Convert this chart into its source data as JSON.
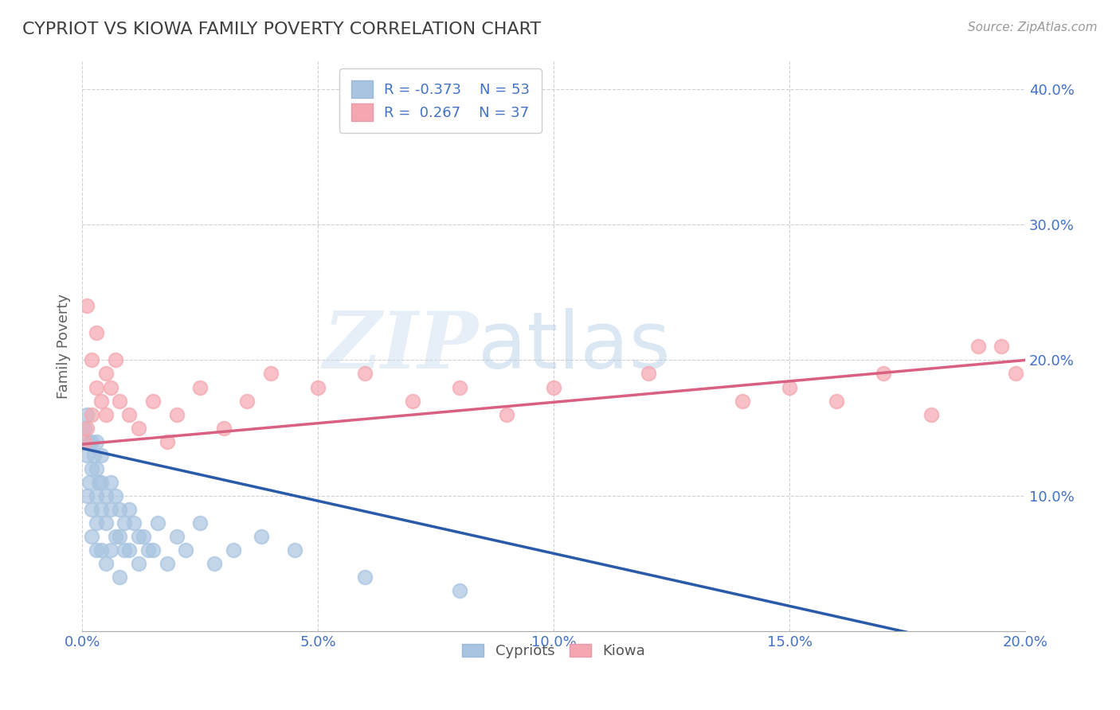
{
  "title": "CYPRIOT VS KIOWA FAMILY POVERTY CORRELATION CHART",
  "source": "Source: ZipAtlas.com",
  "ylabel": "Family Poverty",
  "watermark_zip": "ZIP",
  "watermark_atlas": "atlas",
  "xlim": [
    0.0,
    0.2
  ],
  "ylim": [
    0.0,
    0.42
  ],
  "xticks": [
    0.0,
    0.05,
    0.1,
    0.15,
    0.2
  ],
  "xtick_labels": [
    "0.0%",
    "5.0%",
    "10.0%",
    "15.0%",
    "20.0%"
  ],
  "yticks": [
    0.0,
    0.1,
    0.2,
    0.3,
    0.4
  ],
  "ytick_labels": [
    "",
    "10.0%",
    "20.0%",
    "30.0%",
    "40.0%"
  ],
  "cypriot_color": "#a8c4e0",
  "kiowa_color": "#f4a7b0",
  "cypriot_line_color": "#2a5aaa",
  "kiowa_line_color": "#d96080",
  "R_cypriot": -0.373,
  "N_cypriot": 53,
  "R_kiowa": 0.267,
  "N_kiowa": 37,
  "grid_color": "#cccccc",
  "background_color": "#ffffff",
  "title_color": "#404040",
  "axis_label_color": "#606060",
  "tick_color": "#4472c4",
  "cypriot_x": [
    0.0005,
    0.001,
    0.001,
    0.001,
    0.0015,
    0.0015,
    0.002,
    0.002,
    0.002,
    0.002,
    0.0025,
    0.003,
    0.003,
    0.003,
    0.003,
    0.003,
    0.0035,
    0.004,
    0.004,
    0.004,
    0.004,
    0.005,
    0.005,
    0.005,
    0.006,
    0.006,
    0.006,
    0.007,
    0.007,
    0.008,
    0.008,
    0.008,
    0.009,
    0.009,
    0.01,
    0.01,
    0.011,
    0.012,
    0.012,
    0.013,
    0.014,
    0.015,
    0.016,
    0.018,
    0.02,
    0.022,
    0.025,
    0.028,
    0.032,
    0.038,
    0.045,
    0.06,
    0.08
  ],
  "cypriot_y": [
    0.15,
    0.16,
    0.13,
    0.1,
    0.14,
    0.11,
    0.14,
    0.12,
    0.09,
    0.07,
    0.13,
    0.14,
    0.12,
    0.1,
    0.08,
    0.06,
    0.11,
    0.13,
    0.11,
    0.09,
    0.06,
    0.1,
    0.08,
    0.05,
    0.11,
    0.09,
    0.06,
    0.1,
    0.07,
    0.09,
    0.07,
    0.04,
    0.08,
    0.06,
    0.09,
    0.06,
    0.08,
    0.07,
    0.05,
    0.07,
    0.06,
    0.06,
    0.08,
    0.05,
    0.07,
    0.06,
    0.08,
    0.05,
    0.06,
    0.07,
    0.06,
    0.04,
    0.03
  ],
  "kiowa_x": [
    0.0005,
    0.001,
    0.001,
    0.002,
    0.002,
    0.003,
    0.003,
    0.004,
    0.005,
    0.005,
    0.006,
    0.007,
    0.008,
    0.01,
    0.012,
    0.015,
    0.018,
    0.02,
    0.025,
    0.03,
    0.035,
    0.04,
    0.05,
    0.06,
    0.07,
    0.08,
    0.09,
    0.1,
    0.12,
    0.14,
    0.15,
    0.16,
    0.17,
    0.18,
    0.19,
    0.195,
    0.198
  ],
  "kiowa_y": [
    0.14,
    0.15,
    0.24,
    0.16,
    0.2,
    0.18,
    0.22,
    0.17,
    0.19,
    0.16,
    0.18,
    0.2,
    0.17,
    0.16,
    0.15,
    0.17,
    0.14,
    0.16,
    0.18,
    0.15,
    0.17,
    0.19,
    0.18,
    0.19,
    0.17,
    0.18,
    0.16,
    0.18,
    0.19,
    0.17,
    0.18,
    0.17,
    0.19,
    0.16,
    0.21,
    0.21,
    0.19
  ]
}
